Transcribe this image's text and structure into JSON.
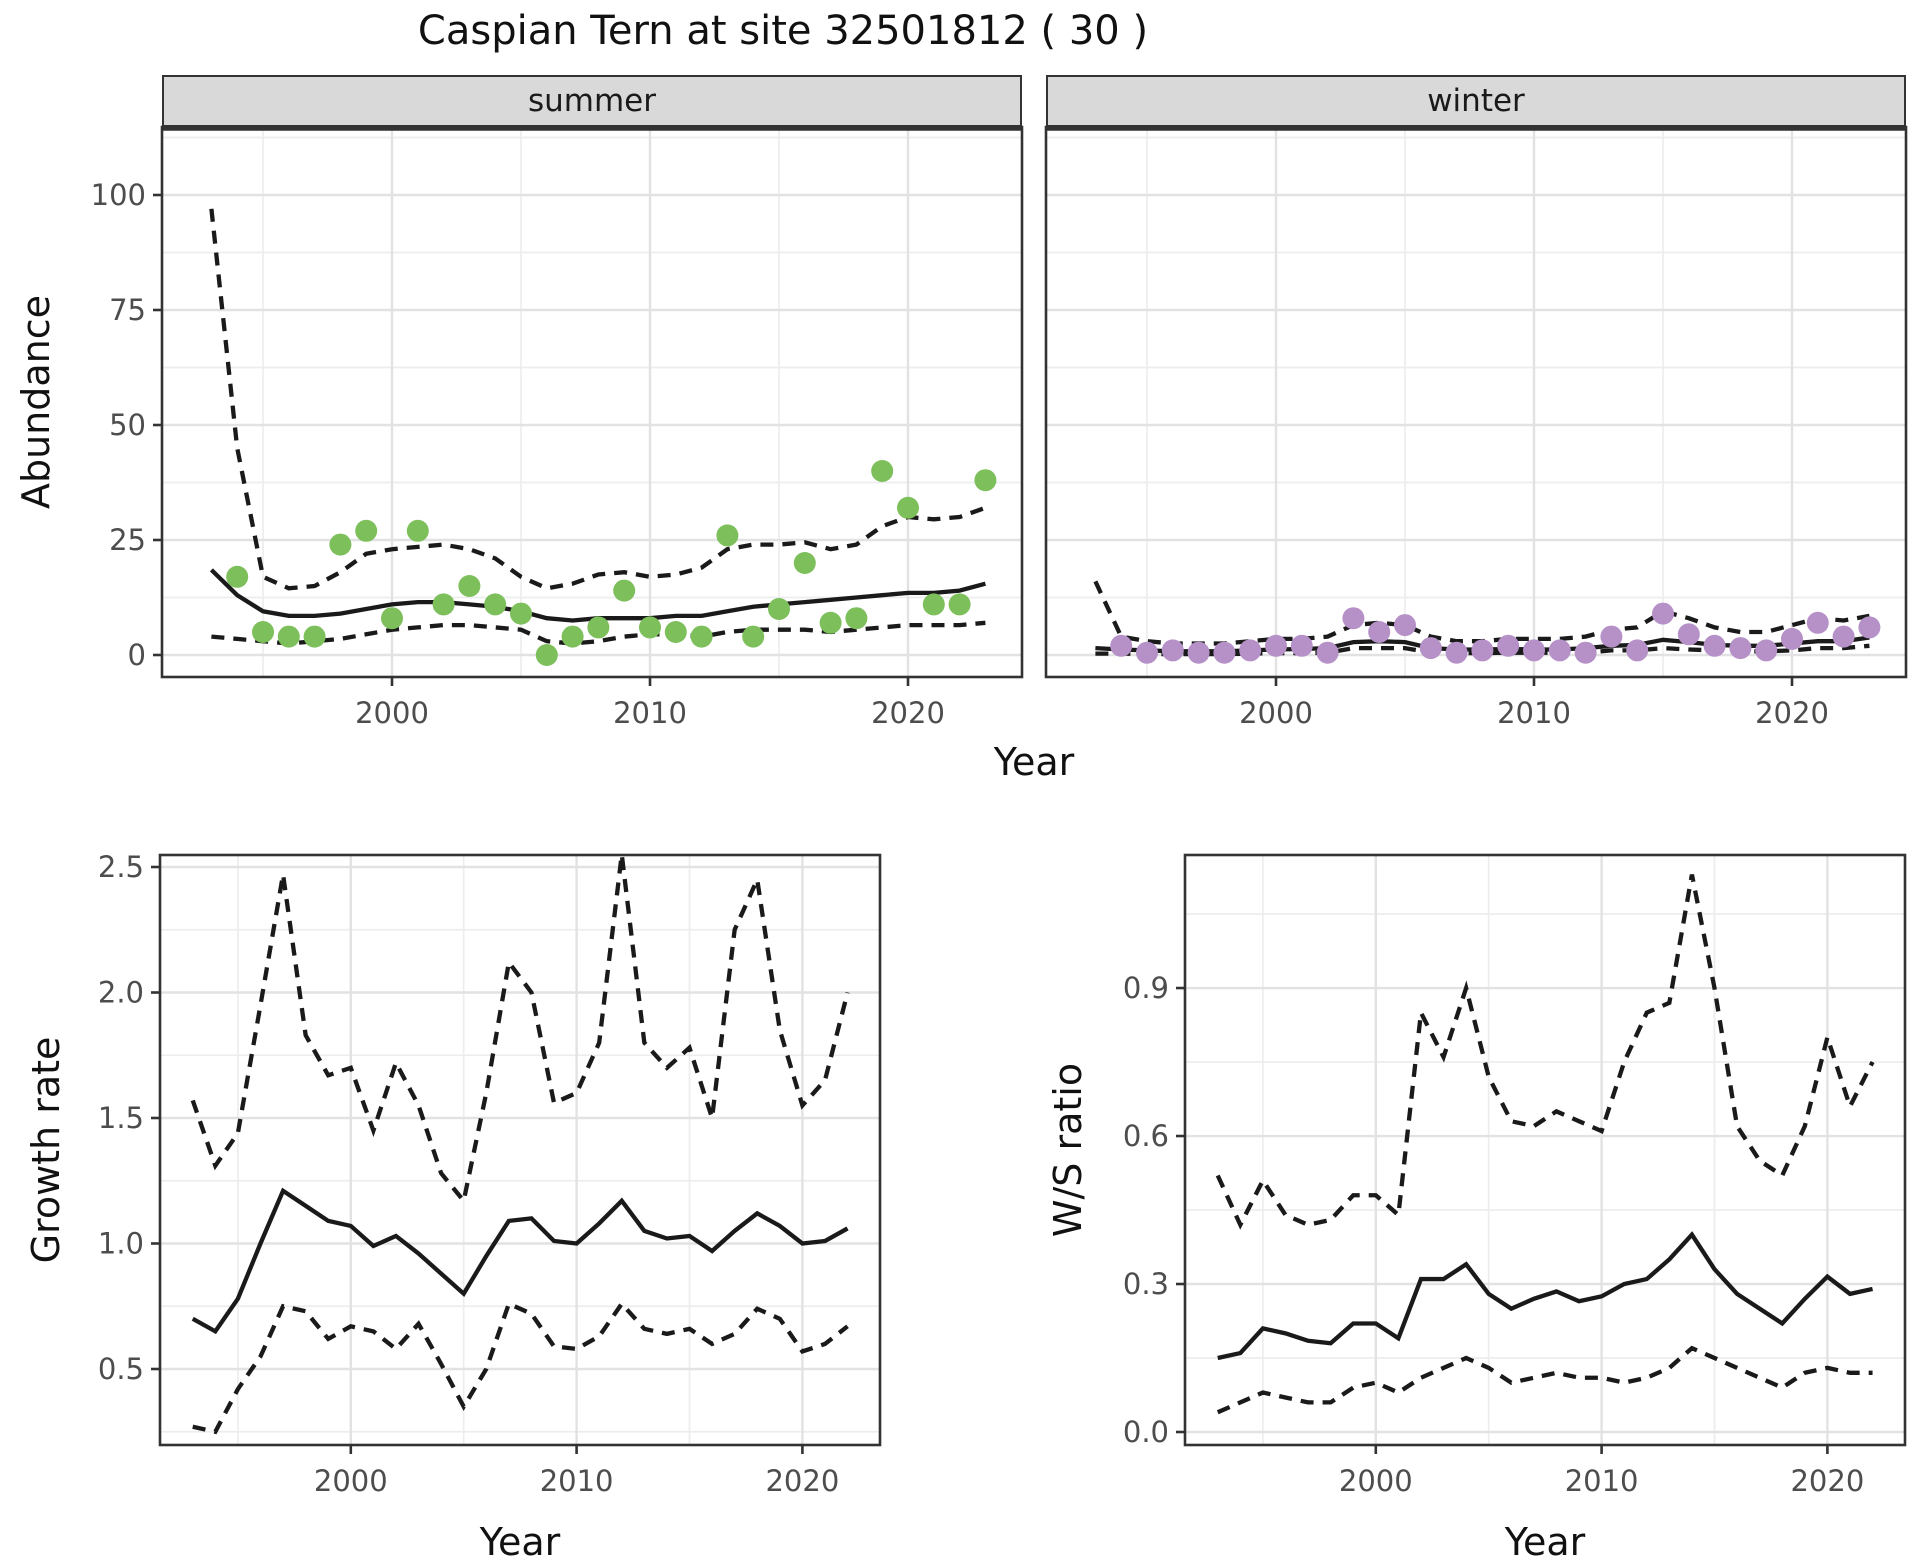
{
  "title": "Caspian Tern at site 32501812 ( 30 )",
  "axes": {
    "abundance": "Abundance",
    "year_top": "Year",
    "growth": "Growth rate",
    "ws_ratio": "W/S ratio",
    "year_growth": "Year",
    "year_ws": "Year"
  },
  "style": {
    "line_color": "#1A1A1A",
    "grid_major": "#E2E2E2",
    "grid_minor": "#EDEDED",
    "panel_border": "#333333",
    "strip_bg": "#D9D9D9",
    "tick_text": "#4D4D4D",
    "summer_point": "#7CBF5B",
    "winter_point": "#B591C8"
  },
  "chart_data": [
    {
      "id": "summer-abundance",
      "type": "line+scatter",
      "facet_label": "summer",
      "xlabel": "Year",
      "ylabel": "Abundance",
      "ylim": [
        0,
        100
      ],
      "point_color": "#7CBF5B",
      "xtick_values": [
        2000,
        2010,
        2020
      ],
      "xtick_labels": [
        "2000",
        "2010",
        "2020"
      ],
      "xminor_values": [
        1995,
        2005,
        2015
      ],
      "ytick_values": [
        0,
        25,
        50,
        75,
        100
      ],
      "ytick_labels": [
        "0",
        "25",
        "50",
        "75",
        "100"
      ],
      "yminor_values": [
        12.5,
        37.5,
        62.5,
        87.5,
        112.5
      ],
      "x_fit": [
        1993,
        1994,
        1995,
        1996,
        1997,
        1998,
        1999,
        2000,
        2001,
        2002,
        2003,
        2004,
        2005,
        2006,
        2007,
        2008,
        2009,
        2010,
        2011,
        2012,
        2013,
        2014,
        2015,
        2016,
        2017,
        2018,
        2019,
        2020,
        2021,
        2022,
        2023
      ],
      "median": [
        18.5,
        13,
        9.5,
        8.5,
        8.5,
        9,
        10,
        11,
        11.5,
        11.5,
        11,
        10.5,
        9.5,
        8,
        7.5,
        8,
        8,
        8,
        8.5,
        8.5,
        9.5,
        10.5,
        11,
        11.5,
        12,
        12.5,
        13,
        13.5,
        13.5,
        14,
        15.5
      ],
      "upper": [
        97,
        45,
        17,
        14.5,
        15,
        18,
        22,
        23,
        23.5,
        24,
        23,
        21,
        17,
        14.5,
        15.5,
        17.5,
        18,
        17,
        17.5,
        19,
        23,
        24,
        24,
        24.5,
        23,
        24,
        28,
        30,
        29.5,
        30,
        32
      ],
      "lower": [
        4,
        3.5,
        3,
        2.5,
        3,
        3.5,
        4.5,
        5.5,
        6,
        6.5,
        6.5,
        6,
        5.5,
        3,
        2.5,
        3,
        4,
        4.5,
        4.5,
        4,
        5,
        5.5,
        5.5,
        5.5,
        5,
        5.5,
        6,
        6.5,
        6.5,
        6.5,
        7
      ],
      "obs_years": [
        1994,
        1995,
        1996,
        1997,
        1998,
        1999,
        2000,
        2001,
        2002,
        2003,
        2004,
        2005,
        2006,
        2007,
        2008,
        2009,
        2010,
        2011,
        2012,
        2013,
        2014,
        2015,
        2016,
        2017,
        2018,
        2019,
        2020,
        2021,
        2022,
        2023
      ],
      "obs_values": [
        17,
        5,
        4,
        4,
        24,
        27,
        8,
        27,
        11,
        15,
        11,
        9,
        0,
        4,
        6,
        14,
        6,
        5,
        4,
        26,
        4,
        10,
        20,
        7,
        8,
        40,
        32,
        11,
        11,
        38
      ]
    },
    {
      "id": "winter-abundance",
      "type": "line+scatter",
      "facet_label": "winter",
      "xlabel": "Year",
      "ylabel": "Abundance",
      "ylim": [
        0,
        100
      ],
      "point_color": "#B591C8",
      "xtick_values": [
        2000,
        2010,
        2020
      ],
      "xtick_labels": [
        "2000",
        "2010",
        "2020"
      ],
      "xminor_values": [
        1995,
        2005,
        2015
      ],
      "ytick_values": [
        0,
        25,
        50,
        75,
        100
      ],
      "ytick_labels": [
        "0",
        "25",
        "50",
        "75",
        "100"
      ],
      "yminor_values": [
        12.5,
        37.5,
        62.5,
        87.5,
        112.5
      ],
      "x_fit": [
        1993,
        1994,
        1995,
        1996,
        1997,
        1998,
        1999,
        2000,
        2001,
        2002,
        2003,
        2004,
        2005,
        2006,
        2007,
        2008,
        2009,
        2010,
        2011,
        2012,
        2013,
        2014,
        2015,
        2016,
        2017,
        2018,
        2019,
        2020,
        2021,
        2022,
        2023
      ],
      "median": [
        1.5,
        1.2,
        1,
        0.8,
        0.8,
        0.8,
        1,
        1.2,
        1.3,
        1.5,
        2.8,
        3,
        2.8,
        1.5,
        1.2,
        1.2,
        1.3,
        1.2,
        1.2,
        1.5,
        2,
        2.2,
        3.3,
        2.8,
        2.2,
        2,
        2,
        2.5,
        3,
        3,
        3.8
      ],
      "upper": [
        16,
        4,
        3,
        2.5,
        2.5,
        2.5,
        3,
        3.5,
        3.5,
        4,
        6.5,
        7,
        6.5,
        4,
        3,
        3,
        3.5,
        3.5,
        3.5,
        4,
        5.5,
        6,
        9.5,
        8,
        6,
        5,
        5,
        6.5,
        8,
        7.5,
        8.5
      ],
      "lower": [
        0.3,
        0.3,
        0.2,
        0.2,
        0.2,
        0.2,
        0.3,
        0.4,
        0.4,
        0.5,
        1.5,
        1.5,
        1.5,
        0.5,
        0.4,
        0.4,
        0.5,
        0.5,
        0.5,
        0.5,
        1,
        1,
        1.5,
        1.2,
        1,
        0.8,
        0.8,
        1,
        1.5,
        1.5,
        2
      ],
      "obs_years": [
        1994,
        1995,
        1996,
        1997,
        1998,
        1999,
        2000,
        2001,
        2002,
        2003,
        2004,
        2005,
        2006,
        2007,
        2008,
        2009,
        2010,
        2011,
        2012,
        2013,
        2014,
        2015,
        2016,
        2017,
        2018,
        2019,
        2020,
        2021,
        2022,
        2023
      ],
      "obs_values": [
        2,
        0.5,
        1,
        0.5,
        0.5,
        1,
        2,
        2,
        0.5,
        8,
        5,
        6.5,
        1.5,
        0.5,
        1,
        2,
        1,
        1,
        0.5,
        4,
        1,
        9,
        4.5,
        2,
        1.5,
        1,
        3.5,
        7,
        4,
        6
      ]
    },
    {
      "id": "growth-rate",
      "type": "line",
      "facet_label": "",
      "xlabel": "Year",
      "ylabel": "Growth rate",
      "ylim": [
        0.2,
        2.55
      ],
      "point_color": "",
      "xtick_values": [
        2000,
        2010,
        2020
      ],
      "xtick_labels": [
        "2000",
        "2010",
        "2020"
      ],
      "xminor_values": [
        1995,
        2005,
        2015
      ],
      "ytick_values": [
        0.5,
        1.0,
        1.5,
        2.0,
        2.5
      ],
      "ytick_labels": [
        "0.5",
        "1.0",
        "1.5",
        "2.0",
        "2.5"
      ],
      "yminor_values": [
        0.25,
        0.75,
        1.25,
        1.75,
        2.25
      ],
      "x_fit": [
        1993,
        1994,
        1995,
        1996,
        1997,
        1998,
        1999,
        2000,
        2001,
        2002,
        2003,
        2004,
        2005,
        2006,
        2007,
        2008,
        2009,
        2010,
        2011,
        2012,
        2013,
        2014,
        2015,
        2016,
        2017,
        2018,
        2019,
        2020,
        2021,
        2022
      ],
      "median": [
        0.7,
        0.65,
        0.78,
        1.0,
        1.21,
        1.15,
        1.09,
        1.07,
        0.99,
        1.03,
        0.96,
        0.88,
        0.8,
        0.95,
        1.09,
        1.1,
        1.01,
        1.0,
        1.08,
        1.17,
        1.05,
        1.02,
        1.03,
        0.97,
        1.05,
        1.12,
        1.07,
        1.0,
        1.01,
        1.06
      ],
      "upper": [
        1.57,
        1.31,
        1.44,
        1.95,
        2.47,
        1.83,
        1.67,
        1.7,
        1.45,
        1.72,
        1.55,
        1.28,
        1.17,
        1.6,
        2.12,
        2.0,
        1.56,
        1.6,
        1.8,
        2.55,
        1.8,
        1.7,
        1.78,
        1.5,
        2.25,
        2.45,
        1.85,
        1.55,
        1.65,
        2.0
      ],
      "lower": [
        0.27,
        0.25,
        0.42,
        0.55,
        0.75,
        0.73,
        0.62,
        0.67,
        0.65,
        0.58,
        0.68,
        0.52,
        0.35,
        0.5,
        0.76,
        0.72,
        0.59,
        0.58,
        0.63,
        0.76,
        0.66,
        0.64,
        0.66,
        0.6,
        0.64,
        0.74,
        0.7,
        0.57,
        0.6,
        0.67
      ],
      "obs_years": [],
      "obs_values": []
    },
    {
      "id": "ws-ratio",
      "type": "line",
      "facet_label": "",
      "xlabel": "Year",
      "ylabel": "W/S ratio",
      "ylim": [
        0.0,
        1.17
      ],
      "point_color": "",
      "xtick_values": [
        2000,
        2010,
        2020
      ],
      "xtick_labels": [
        "2000",
        "2010",
        "2020"
      ],
      "xminor_values": [
        1995,
        2005,
        2015
      ],
      "ytick_values": [
        0.0,
        0.3,
        0.6,
        0.9
      ],
      "ytick_labels": [
        "0.0",
        "0.3",
        "0.6",
        "0.9"
      ],
      "yminor_values": [
        0.15,
        0.45,
        0.75,
        1.05
      ],
      "x_fit": [
        1993,
        1994,
        1995,
        1996,
        1997,
        1998,
        1999,
        2000,
        2001,
        2002,
        2003,
        2004,
        2005,
        2006,
        2007,
        2008,
        2009,
        2010,
        2011,
        2012,
        2013,
        2014,
        2015,
        2016,
        2017,
        2018,
        2019,
        2020,
        2021,
        2022
      ],
      "median": [
        0.15,
        0.16,
        0.21,
        0.2,
        0.185,
        0.18,
        0.22,
        0.22,
        0.19,
        0.31,
        0.31,
        0.34,
        0.28,
        0.25,
        0.27,
        0.285,
        0.265,
        0.275,
        0.3,
        0.31,
        0.35,
        0.4,
        0.33,
        0.28,
        0.25,
        0.22,
        0.27,
        0.315,
        0.28,
        0.29
      ],
      "upper": [
        0.52,
        0.42,
        0.51,
        0.44,
        0.42,
        0.43,
        0.48,
        0.48,
        0.44,
        0.85,
        0.76,
        0.9,
        0.72,
        0.63,
        0.62,
        0.65,
        0.63,
        0.61,
        0.75,
        0.85,
        0.87,
        1.13,
        0.9,
        0.62,
        0.55,
        0.52,
        0.62,
        0.8,
        0.66,
        0.75
      ],
      "lower": [
        0.04,
        0.06,
        0.08,
        0.07,
        0.06,
        0.06,
        0.09,
        0.1,
        0.08,
        0.11,
        0.13,
        0.15,
        0.13,
        0.1,
        0.11,
        0.12,
        0.11,
        0.11,
        0.1,
        0.11,
        0.13,
        0.17,
        0.15,
        0.13,
        0.11,
        0.09,
        0.12,
        0.13,
        0.12,
        0.12
      ],
      "obs_years": [],
      "obs_values": []
    }
  ]
}
